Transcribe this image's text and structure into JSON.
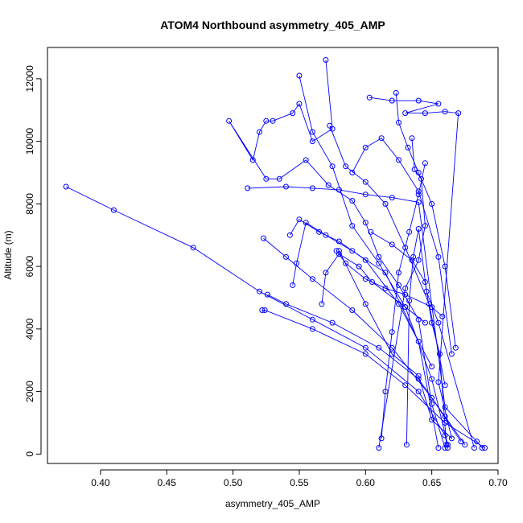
{
  "chart_data": {
    "type": "scatter",
    "title": "ATOM4 Northbound asymmetry_405_AMP",
    "xlabel": "asymmetry_405_AMP",
    "ylabel": "Altitude (m)",
    "xlim": [
      0.36,
      0.7
    ],
    "ylim": [
      -300,
      13000
    ],
    "x_ticks": [
      0.4,
      0.45,
      0.5,
      0.55,
      0.6,
      0.65,
      0.7
    ],
    "y_ticks": [
      0,
      2000,
      4000,
      6000,
      8000,
      10000,
      12000
    ],
    "x_tick_labels": [
      "0.40",
      "0.45",
      "0.50",
      "0.55",
      "0.60",
      "0.65",
      "0.70"
    ],
    "y_tick_labels": [
      "0",
      "2000",
      "4000",
      "6000",
      "8000",
      "10000",
      "12000"
    ],
    "color": "#0000ff",
    "grid": false,
    "markers": "open-circle",
    "series": [
      {
        "x": [
          0.57,
          0.575,
          0.56,
          0.55,
          0.545,
          0.53,
          0.525,
          0.52,
          0.515,
          0.497,
          0.525,
          0.535,
          0.555,
          0.572,
          0.59,
          0.6,
          0.61,
          0.625,
          0.64,
          0.65,
          0.66
        ],
        "y": [
          12600,
          10400,
          10000,
          11200,
          10900,
          10650,
          10650,
          10300,
          9400,
          10650,
          8800,
          8800,
          9400,
          8600,
          8100,
          7400,
          6300,
          5400,
          4300,
          1600,
          200
        ]
      },
      {
        "x": [
          0.55,
          0.56,
          0.575,
          0.59,
          0.61,
          0.63,
          0.65,
          0.662
        ],
        "y": [
          12100,
          10300,
          9200,
          7300,
          6100,
          4700,
          2400,
          300
        ]
      },
      {
        "x": [
          0.603,
          0.62,
          0.64,
          0.655,
          0.63,
          0.645,
          0.66,
          0.67,
          0.655,
          0.665,
          0.65,
          0.64,
          0.62,
          0.6,
          0.58
        ],
        "y": [
          11400,
          11300,
          11300,
          11200,
          10900,
          10900,
          10950,
          10900,
          2300,
          500,
          1100,
          2500,
          3200,
          4800,
          6500
        ]
      },
      {
        "x": [
          0.623,
          0.625,
          0.632,
          0.64,
          0.65,
          0.66,
          0.668
        ],
        "y": [
          11550,
          10600,
          9800,
          9000,
          8000,
          6000,
          3400
        ]
      },
      {
        "x": [
          0.374,
          0.41,
          0.47,
          0.52,
          0.56,
          0.6,
          0.64,
          0.66,
          0.662
        ],
        "y": [
          8550,
          7800,
          6600,
          5200,
          4300,
          3400,
          2000,
          600,
          200
        ]
      },
      {
        "x": [
          0.511,
          0.54,
          0.56,
          0.58,
          0.6,
          0.62,
          0.64,
          0.66,
          0.684,
          0.688
        ],
        "y": [
          8500,
          8550,
          8500,
          8450,
          8300,
          8200,
          8050,
          1500,
          400,
          200
        ]
      },
      {
        "x": [
          0.522,
          0.524,
          0.56,
          0.6,
          0.63,
          0.66,
          0.69
        ],
        "y": [
          4600,
          4600,
          4000,
          3200,
          2200,
          1000,
          200
        ]
      },
      {
        "x": [
          0.526,
          0.54,
          0.575,
          0.61,
          0.64,
          0.66,
          0.675
        ],
        "y": [
          5100,
          4800,
          4200,
          3400,
          2400,
          1200,
          300
        ]
      },
      {
        "x": [
          0.523,
          0.54,
          0.56,
          0.59,
          0.62,
          0.65,
          0.672
        ],
        "y": [
          6900,
          6300,
          5600,
          4600,
          3400,
          1800,
          400
        ]
      },
      {
        "x": [
          0.545,
          0.548,
          0.555,
          0.57,
          0.59,
          0.615,
          0.64,
          0.655
        ],
        "y": [
          5400,
          6100,
          7400,
          7000,
          6500,
          5800,
          3600,
          200
        ]
      },
      {
        "x": [
          0.543,
          0.55,
          0.565,
          0.58,
          0.6,
          0.625,
          0.65
        ],
        "y": [
          7000,
          7500,
          7100,
          6800,
          6200,
          4800,
          2800
        ]
      },
      {
        "x": [
          0.567,
          0.57,
          0.58,
          0.595,
          0.605,
          0.63,
          0.645
        ],
        "y": [
          4800,
          5800,
          6400,
          6000,
          5500,
          4700,
          4200
        ]
      },
      {
        "x": [
          0.578,
          0.585,
          0.6,
          0.615,
          0.63,
          0.65,
          0.658
        ],
        "y": [
          6500,
          6100,
          5600,
          5300,
          5100,
          4700,
          4400
        ]
      },
      {
        "x": [
          0.59,
          0.6,
          0.612,
          0.625,
          0.64,
          0.655,
          0.665
        ],
        "y": [
          9000,
          9800,
          10100,
          9400,
          8400,
          6300,
          3200
        ]
      },
      {
        "x": [
          0.573,
          0.585,
          0.6,
          0.615,
          0.63,
          0.648,
          0.66
        ],
        "y": [
          10500,
          9200,
          8700,
          8000,
          6600,
          4800,
          2200
        ]
      },
      {
        "x": [
          0.635,
          0.637,
          0.642,
          0.645,
          0.64,
          0.63,
          0.61
        ],
        "y": [
          10100,
          9100,
          8800,
          7300,
          6200,
          5300,
          200
        ]
      },
      {
        "x": [
          0.645,
          0.64,
          0.633,
          0.625,
          0.62,
          0.615,
          0.612
        ],
        "y": [
          9300,
          8300,
          7100,
          5800,
          3900,
          2000,
          500
        ]
      },
      {
        "x": [
          0.631,
          0.633,
          0.636,
          0.64,
          0.646,
          0.655,
          0.682
        ],
        "y": [
          300,
          4900,
          6300,
          7200,
          5200,
          4200,
          200
        ]
      },
      {
        "x": [
          0.604,
          0.62,
          0.635,
          0.645,
          0.65,
          0.656,
          0.661
        ],
        "y": [
          7100,
          6700,
          6200,
          5500,
          4200,
          3200,
          300
        ]
      }
    ]
  }
}
